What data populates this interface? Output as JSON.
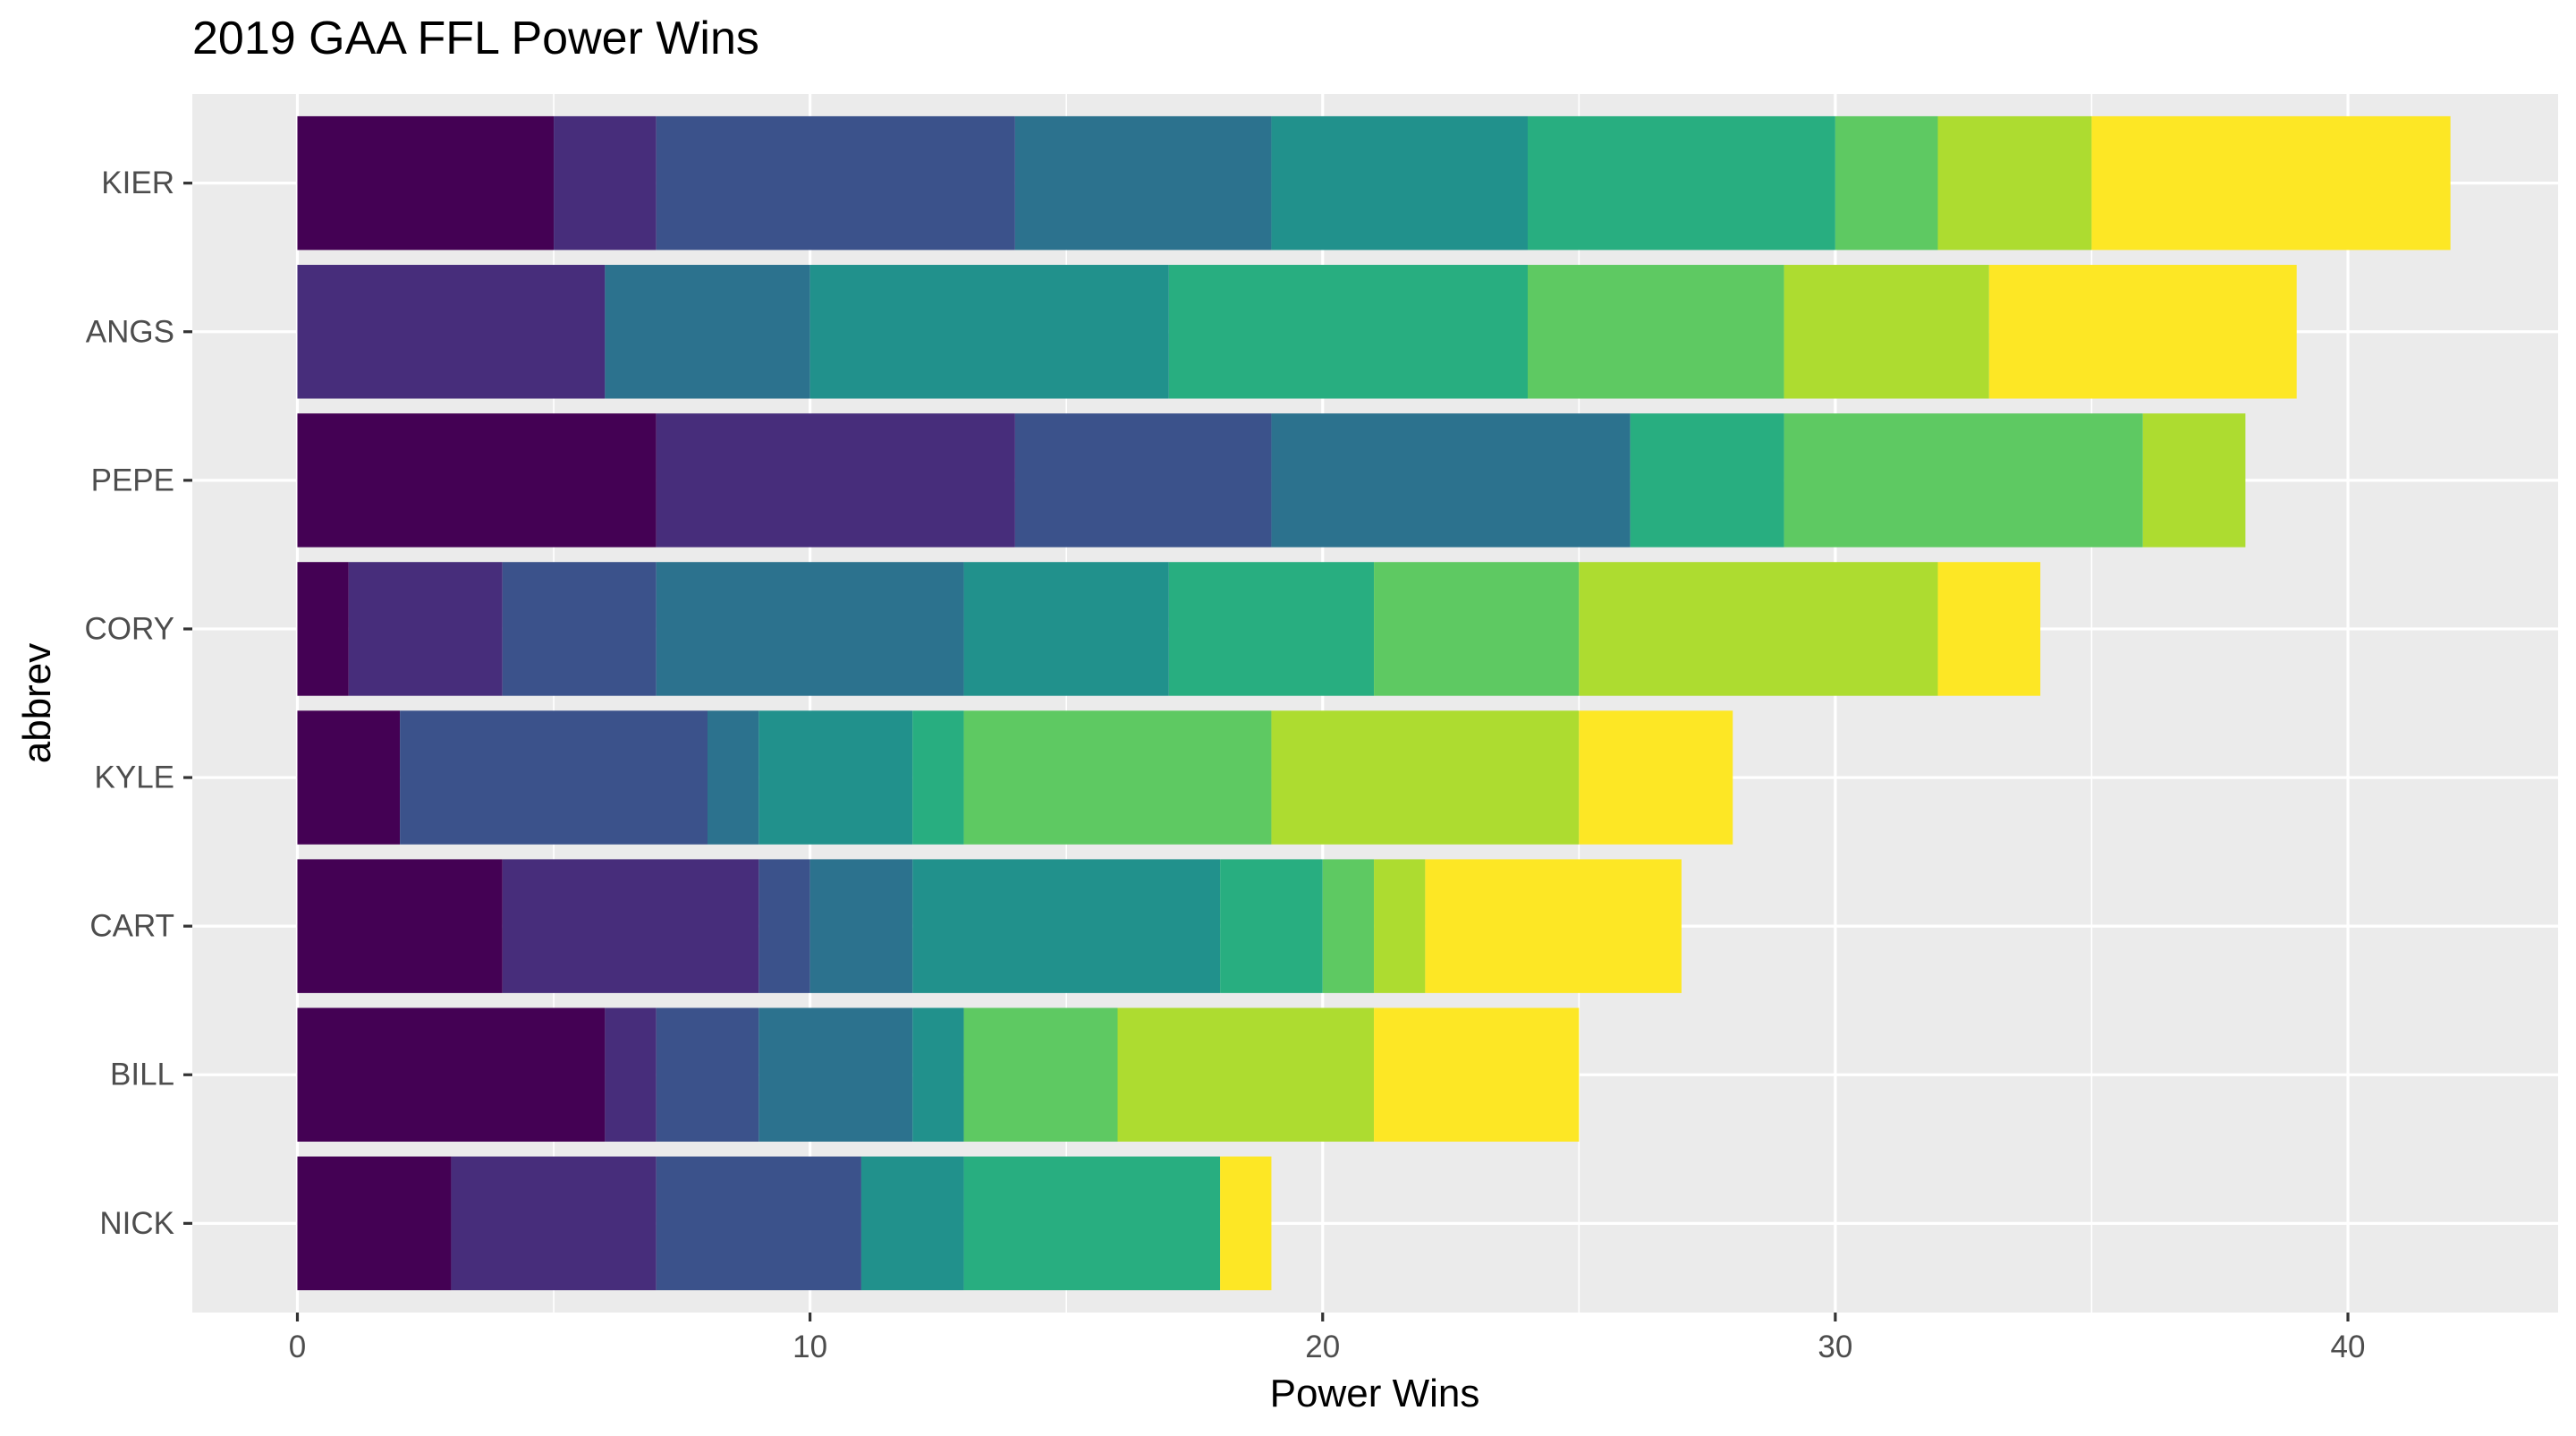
{
  "chart_data": {
    "type": "bar",
    "orientation": "horizontal",
    "stacked": true,
    "title": "2019 GAA FFL Power Wins",
    "xlabel": "Power Wins",
    "ylabel": "abbrev",
    "xlim": [
      -2.05,
      44.1
    ],
    "xticks": [
      0,
      10,
      20,
      30,
      40
    ],
    "grid": true,
    "legend": "none",
    "panel_background": "#ebebeb",
    "grid_color": "#ffffff",
    "palette": [
      "#440154",
      "#472d7b",
      "#3b528b",
      "#2c728e",
      "#21918c",
      "#28ae80",
      "#5ec962",
      "#addc30",
      "#fde725"
    ],
    "categories": [
      "KIER",
      "ANGS",
      "PEPE",
      "CORY",
      "KYLE",
      "CART",
      "BILL",
      "NICK"
    ],
    "segments": [
      [
        5,
        2,
        7,
        5,
        5,
        6,
        2,
        3,
        7
      ],
      [
        0,
        6,
        0,
        4,
        7,
        7,
        5,
        4,
        6
      ],
      [
        7,
        7,
        5,
        7,
        0,
        3,
        7,
        2,
        0
      ],
      [
        1,
        3,
        3,
        6,
        4,
        4,
        4,
        7,
        2
      ],
      [
        2,
        0,
        6,
        1,
        3,
        1,
        6,
        6,
        3
      ],
      [
        4,
        5,
        1,
        2,
        6,
        2,
        1,
        1,
        5
      ],
      [
        6,
        1,
        2,
        3,
        1,
        0,
        3,
        5,
        4
      ],
      [
        3,
        4,
        4,
        0,
        2,
        5,
        0,
        0,
        1
      ]
    ],
    "totals": [
      42,
      39,
      38,
      34,
      28,
      27,
      25,
      19
    ]
  }
}
